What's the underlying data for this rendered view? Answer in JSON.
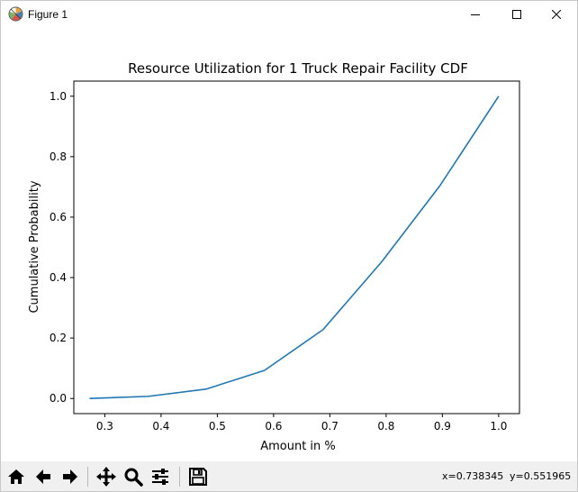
{
  "window": {
    "title": "Figure 1",
    "icon": "matplotlib-logo-icon",
    "controls": [
      "minimize-icon",
      "maximize-icon",
      "close-icon"
    ]
  },
  "toolbar": {
    "buttons": [
      "home-icon",
      "back-arrow-icon",
      "forward-arrow-icon",
      "pan-move-icon",
      "zoom-magnifier-icon",
      "configure-subplots-icon",
      "save-icon"
    ],
    "x_readout": "x=0.738345",
    "y_readout": "y=0.551965"
  },
  "chart_data": {
    "type": "line",
    "title": "Resource Utilization for 1 Truck Repair Facility CDF",
    "xlabel": "Amount in %",
    "ylabel": "Cumulative Probability",
    "xlim": [
      0.245,
      1.037
    ],
    "ylim": [
      -0.05,
      1.05
    ],
    "xticks": [
      0.3,
      0.4,
      0.5,
      0.6,
      0.7,
      0.8,
      0.9,
      1.0
    ],
    "xtick_labels": [
      "0.3",
      "0.4",
      "0.5",
      "0.6",
      "0.7",
      "0.8",
      "0.9",
      "1.0"
    ],
    "yticks": [
      0.0,
      0.2,
      0.4,
      0.6,
      0.8,
      1.0
    ],
    "ytick_labels": [
      "0.0",
      "0.2",
      "0.4",
      "0.6",
      "0.8",
      "1.0"
    ],
    "grid": false,
    "line_color": "#1f77b4",
    "series": [
      {
        "x": [
          0.273,
          0.377,
          0.48,
          0.584,
          0.688,
          0.792,
          0.896,
          1.0
        ],
        "y": [
          0.0,
          0.007,
          0.031,
          0.093,
          0.228,
          0.452,
          0.705,
          1.0
        ]
      }
    ]
  }
}
